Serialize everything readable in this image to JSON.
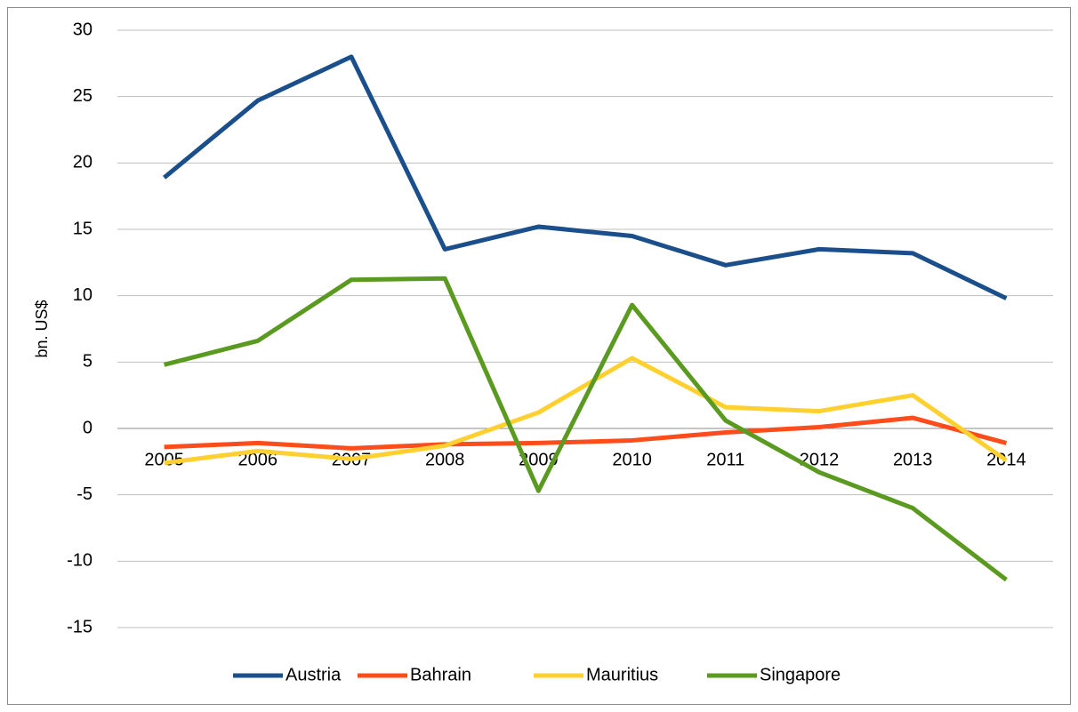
{
  "chart_data": {
    "type": "line",
    "y_label": "bn. US$",
    "categories": [
      "2005",
      "2006",
      "2007",
      "2008",
      "2009",
      "2010",
      "2011",
      "2012",
      "2013",
      "2014"
    ],
    "series": [
      {
        "name": "Austria",
        "color": "#1a4f8b",
        "values": [
          18.9,
          24.7,
          28.0,
          13.5,
          15.2,
          14.5,
          12.3,
          13.5,
          13.2,
          9.8
        ]
      },
      {
        "name": "Bahrain",
        "color": "#ff4c1b",
        "values": [
          -1.4,
          -1.1,
          -1.5,
          -1.2,
          -1.1,
          -0.9,
          -0.3,
          0.1,
          0.8,
          -1.1
        ]
      },
      {
        "name": "Mauritius",
        "color": "#ffd02f",
        "values": [
          -2.6,
          -1.7,
          -2.3,
          -1.3,
          1.2,
          5.3,
          1.6,
          1.3,
          2.5,
          -2.4
        ]
      },
      {
        "name": "Singapore",
        "color": "#5b9a20",
        "values": [
          4.8,
          6.6,
          11.2,
          11.3,
          -4.7,
          9.3,
          0.6,
          -3.3,
          -6.0,
          -11.4
        ]
      }
    ],
    "ylim": [
      -15,
      30
    ],
    "yticks": [
      -15,
      -10,
      -5,
      0,
      5,
      10,
      15,
      20,
      25,
      30
    ],
    "grid": true,
    "legend": "bottom"
  }
}
